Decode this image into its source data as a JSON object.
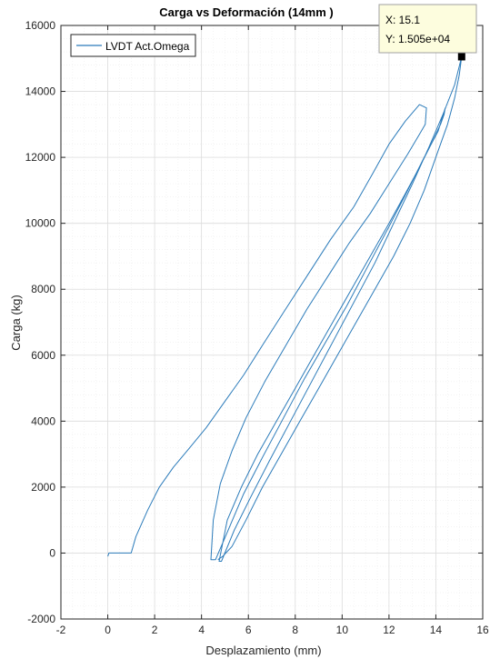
{
  "chart_data": {
    "type": "line",
    "title": "Carga vs Deformación (14mm )",
    "xlabel": "Desplazamiento (mm)",
    "ylabel": "Carga (kg)",
    "xlim": [
      -2,
      16
    ],
    "ylim": [
      -2000,
      16000
    ],
    "xticks": [
      "-2",
      "0",
      "2",
      "4",
      "6",
      "8",
      "10",
      "12",
      "14",
      "16"
    ],
    "yticks": [
      "-2000",
      "0",
      "2000",
      "4000",
      "6000",
      "8000",
      "10000",
      "12000",
      "14000",
      "16000"
    ],
    "grid": true,
    "minor_grid": true,
    "legend_position": "top-left",
    "series": [
      {
        "name": "LVDT Act.Omega",
        "color": "#2b7bba",
        "x": [
          0.0,
          0.05,
          0.1,
          1.0,
          1.2,
          1.7,
          2.2,
          2.8,
          3.5,
          4.2,
          5.0,
          5.8,
          6.6,
          7.5,
          8.5,
          9.5,
          10.5,
          11.3,
          12.0,
          12.7,
          13.3,
          13.6,
          13.55,
          13.3,
          12.8,
          12.0,
          11.2,
          10.3,
          9.4,
          8.5,
          7.6,
          6.7,
          5.9,
          5.3,
          4.8,
          4.5,
          4.4,
          4.6,
          5.2,
          5.8,
          6.6,
          7.5,
          8.4,
          9.3,
          10.2,
          11.1,
          12.0,
          12.8,
          13.5,
          14.1,
          14.4,
          14.35,
          14.2,
          13.8,
          13.3,
          12.7,
          12.0,
          11.2,
          10.4,
          9.6,
          8.8,
          8.0,
          7.2,
          6.4,
          5.7,
          5.1,
          4.75,
          4.85,
          5.4,
          6.1,
          6.9,
          7.8,
          8.7,
          9.6,
          10.5,
          11.4,
          12.2,
          13.0,
          13.7,
          14.3,
          14.8,
          15.1,
          15.0,
          14.8,
          14.5,
          14.0,
          13.5,
          12.9,
          12.2,
          11.4,
          10.6,
          9.8,
          9.0,
          8.2,
          7.4,
          6.6,
          5.9,
          5.3,
          4.9,
          4.7
        ],
        "y": [
          -100,
          0,
          0,
          0,
          500,
          1300,
          2000,
          2600,
          3200,
          3800,
          4600,
          5400,
          6300,
          7300,
          8400,
          9500,
          10500,
          11500,
          12400,
          13100,
          13600,
          13500,
          13000,
          12700,
          12100,
          11200,
          10300,
          9400,
          8400,
          7400,
          6300,
          5200,
          4100,
          3100,
          2100,
          1000,
          -200,
          -200,
          800,
          1800,
          2900,
          4100,
          5300,
          6400,
          7500,
          8700,
          9900,
          11000,
          12000,
          12800,
          13500,
          13300,
          13000,
          12400,
          11700,
          10900,
          10000,
          9000,
          8000,
          7000,
          6000,
          5000,
          4000,
          3000,
          2000,
          1000,
          -250,
          -250,
          700,
          1700,
          2800,
          4000,
          5200,
          6400,
          7600,
          8800,
          10000,
          11200,
          12300,
          13300,
          14200,
          15050,
          14500,
          13800,
          13000,
          12000,
          11000,
          10000,
          9000,
          8000,
          7000,
          6000,
          5000,
          4000,
          3000,
          2000,
          1000,
          200,
          -100,
          -200
        ]
      }
    ],
    "datatip": {
      "x_text": "X: 15.1",
      "y_text": "Y: 1.505e+04",
      "x": 15.1,
      "y": 15050
    }
  }
}
